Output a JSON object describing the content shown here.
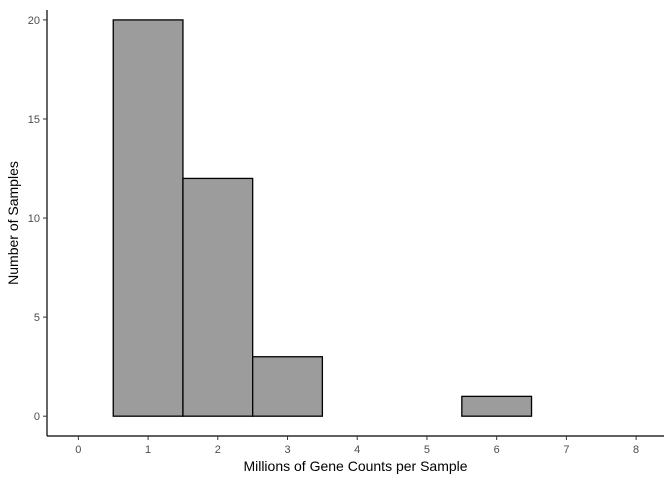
{
  "chart_data": {
    "type": "bar",
    "subtype": "histogram",
    "title": "",
    "xlabel": "Millions of Gene Counts per Sample",
    "ylabel": "Number of Samples",
    "xlim": [
      -0.45,
      8.4
    ],
    "ylim": [
      -1,
      20.5
    ],
    "x_ticks": [
      0,
      1,
      2,
      3,
      4,
      5,
      6,
      7,
      8
    ],
    "y_ticks": [
      0,
      5,
      10,
      15,
      20
    ],
    "bin_width": 1,
    "bins": [
      {
        "center": 1,
        "count": 20
      },
      {
        "center": 2,
        "count": 12
      },
      {
        "center": 3,
        "count": 3
      },
      {
        "center": 4,
        "count": 0
      },
      {
        "center": 5,
        "count": 0
      },
      {
        "center": 6,
        "count": 1
      },
      {
        "center": 7,
        "count": 0
      }
    ],
    "grid": false,
    "legend": "none",
    "colors": {
      "fill": "#9c9c9c",
      "stroke": "#000000"
    }
  }
}
